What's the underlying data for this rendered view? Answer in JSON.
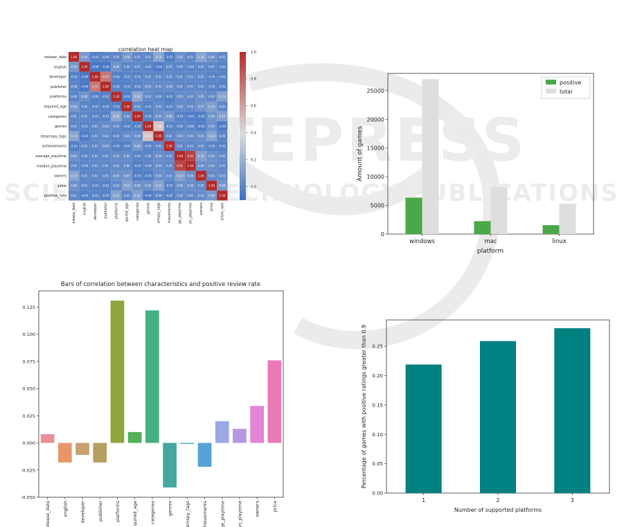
{
  "watermark": {
    "lines": [
      "SCITEPRESS",
      "SCIENCE AND TECHNOLOGY PUBLICATIONS"
    ]
  },
  "chart_data": [
    {
      "type": "heatmap",
      "title": "correlation heat map",
      "labels": [
        "release_date",
        "english",
        "developer",
        "publisher",
        "platforms",
        "required_age",
        "categories",
        "genres",
        "steamspy_tags",
        "achievements",
        "average_playtime",
        "median_playtime",
        "owners",
        "price",
        "positive_rate"
      ],
      "xticklabels": [
        "elease_date",
        "english",
        "developer",
        "publisher",
        "platforms",
        "quired_age",
        "categories",
        "genres",
        "amspy_tags",
        "hievements",
        "ge_playtime",
        "an_playtime",
        "owners",
        "price",
        "sitive_rate"
      ],
      "matrix": [
        [
          "1.00",
          "0.09",
          "-0.02",
          "-0.00",
          "0.00",
          "0.08",
          "0.01",
          "0.01",
          "0.14",
          "-0.03",
          "0.05",
          "0.01",
          "0.14",
          "0.06",
          "0.01"
        ],
        [
          "0.09",
          "1.00",
          "-0.06",
          "-0.06",
          "0.06",
          "0.00",
          "0.01",
          "-0.01",
          "-0.04",
          "0.01",
          "0.00",
          "-0.00",
          "0.01",
          "0.01",
          "-0.02"
        ],
        [
          "-0.02",
          "-0.06",
          "1.00",
          "0.73",
          "-0.02",
          "-0.01",
          "-0.01",
          "0.01",
          "0.01",
          "0.01",
          "0.01",
          "0.01",
          "0.01",
          "-0.01",
          "-0.01"
        ],
        [
          "-0.00",
          "-0.06",
          "0.73",
          "1.00",
          "-0.02",
          "-0.02",
          "-0.01",
          "0.03",
          "0.02",
          "0.04",
          "0.01",
          "0.01",
          "0.01",
          "-0.01",
          "-0.02"
        ],
        [
          "0.00",
          "0.06",
          "-0.02",
          "-0.02",
          "1.00",
          "-0.03",
          "0.16",
          "0.02",
          "0.00",
          "-0.02",
          "0.03",
          "0.02",
          "0.05",
          "0.02",
          "0.13"
        ],
        [
          "0.08",
          "0.00",
          "-0.01",
          "-0.02",
          "-0.03",
          "1.00",
          "0.02",
          "-0.02",
          "0.03",
          "-0.01",
          "0.03",
          "0.02",
          "0.07",
          "0.12",
          "0.01"
        ],
        [
          "0.01",
          "0.01",
          "-0.01",
          "-0.01",
          "0.16",
          "0.02",
          "1.00",
          "-0.02",
          "0.04",
          "0.08",
          "-0.01",
          "-0.03",
          "-0.03",
          "0.06",
          "0.12"
        ],
        [
          "0.01",
          "-0.01",
          "0.01",
          "0.03",
          "0.02",
          "-0.02",
          "-0.02",
          "1.00",
          "0.48",
          "-0.01",
          "0.00",
          "-0.00",
          "-0.03",
          "0.05",
          "-0.04"
        ],
        [
          "0.14",
          "-0.04",
          "0.01",
          "0.02",
          "0.00",
          "0.03",
          "0.04",
          "0.48",
          "1.00",
          "0.01",
          "0.04",
          "0.03",
          "0.04",
          "0.13",
          "0.00"
        ],
        [
          "-0.03",
          "0.01",
          "0.01",
          "0.04",
          "-0.02",
          "-0.01",
          "0.08",
          "-0.01",
          "0.01",
          "1.00",
          "0.01",
          "0.01",
          "0.02",
          "-0.01",
          "-0.02"
        ],
        [
          "0.05",
          "0.00",
          "0.01",
          "0.01",
          "0.03",
          "0.03",
          "-0.01",
          "0.00",
          "0.04",
          "0.01",
          "1.00",
          "0.91",
          "0.12",
          "0.05",
          "0.02"
        ],
        [
          "0.01",
          "-0.00",
          "0.01",
          "0.01",
          "0.02",
          "0.02",
          "-0.03",
          "-0.00",
          "0.03",
          "0.01",
          "0.91",
          "1.00",
          "0.04",
          "0.04",
          "0.01"
        ],
        [
          "0.14",
          "0.01",
          "0.01",
          "0.01",
          "0.05",
          "0.07",
          "-0.03",
          "-0.03",
          "0.04",
          "0.02",
          "0.12",
          "0.04",
          "1.00",
          "0.02",
          "0.03"
        ],
        [
          "0.06",
          "0.01",
          "-0.01",
          "-0.01",
          "0.02",
          "0.12",
          "0.06",
          "0.05",
          "0.13",
          "-0.01",
          "0.05",
          "0.04",
          "0.02",
          "1.00",
          "0.08"
        ],
        [
          "0.01",
          "-0.02",
          "-0.01",
          "-0.02",
          "0.13",
          "0.01",
          "0.12",
          "-0.04",
          "0.00",
          "-0.02",
          "0.02",
          "0.01",
          "0.03",
          "0.08",
          "1.00"
        ]
      ],
      "colorbar": {
        "range": [
          -0.1,
          1.0
        ],
        "ticks": [
          "1.0",
          "0.8",
          "0.6",
          "0.4",
          "0.2",
          "0.0"
        ]
      },
      "colormap": {
        "low": "#3b6fc2",
        "mid": "#dcdcdc",
        "high": "#b32a2a"
      }
    },
    {
      "type": "bar",
      "title": "",
      "categories": [
        "windows",
        "mac",
        "linux"
      ],
      "series": [
        {
          "name": "positive",
          "values": [
            6350,
            2250,
            1550
          ],
          "color": "#4aa84a"
        },
        {
          "name": "total",
          "values": [
            27000,
            8200,
            5300
          ],
          "color": "#dedede"
        }
      ],
      "xlabel": "platform",
      "ylabel": "Amount of games",
      "ylim": [
        0,
        28000
      ],
      "yticks": [
        "0",
        "5000",
        "10000",
        "15000",
        "20000",
        "25000"
      ],
      "legend": "top-right"
    },
    {
      "type": "bar",
      "title": "Bars of correlation between characteristics and positive review rate",
      "categories": [
        "elease_date",
        "english",
        "developer",
        "publisher",
        "platforms",
        "quired_age",
        "categories",
        "genres",
        "amspy_tags",
        "hievements",
        "ge_playtime",
        "an_playtime",
        "owners",
        "price"
      ],
      "values": [
        0.008,
        -0.018,
        -0.011,
        -0.018,
        0.131,
        0.01,
        0.122,
        -0.041,
        -0.001,
        -0.022,
        0.02,
        0.013,
        0.034,
        0.076
      ],
      "colors": [
        "#e8909a",
        "#e8956a",
        "#c8a070",
        "#b4a05e",
        "#8ea63e",
        "#52b055",
        "#47ae84",
        "#44a89e",
        "#56adbe",
        "#57a3d8",
        "#9aa8e6",
        "#b499e2",
        "#e285d6",
        "#ea7ab8"
      ],
      "ylim": [
        -0.05,
        0.14
      ],
      "yticks": [
        "-0.050",
        "-0.025",
        "0.000",
        "0.025",
        "0.050",
        "0.075",
        "0.100",
        "0.125"
      ],
      "xlabel": "",
      "ylabel": ""
    },
    {
      "type": "bar",
      "title": "",
      "categories": [
        "1",
        "2",
        "3"
      ],
      "values": [
        0.219,
        0.259,
        0.281
      ],
      "color": "#008080",
      "xlabel": "Number of supported platforms",
      "ylabel": "Percentage of games with positive ratings greater than 0.9",
      "ylim": [
        0,
        0.295
      ],
      "yticks": [
        "0.00",
        "0.05",
        "0.10",
        "0.15",
        "0.20",
        "0.25"
      ]
    }
  ]
}
